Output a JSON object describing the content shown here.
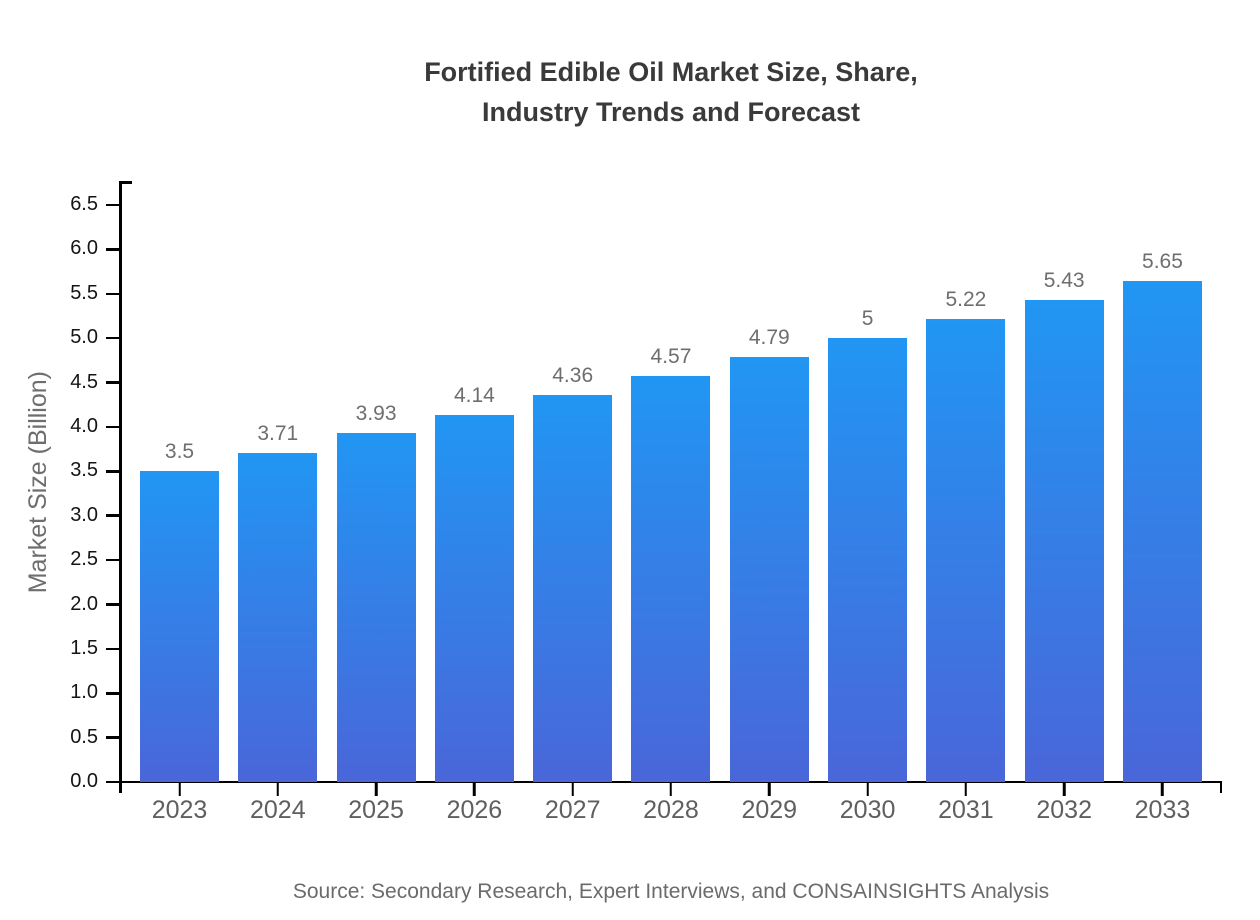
{
  "title": {
    "line1": "Fortified Edible Oil Market Size, Share,",
    "line2": "Industry Trends and Forecast"
  },
  "source": "Source: Secondary Research, Expert Interviews, and CONSAINSIGHTS Analysis",
  "chart_data": {
    "type": "bar",
    "title": "Fortified Edible Oil Market Size, Share, Industry Trends and Forecast",
    "categories": [
      "2023",
      "2024",
      "2025",
      "2026",
      "2027",
      "2028",
      "2029",
      "2030",
      "2031",
      "2032",
      "2033"
    ],
    "values": [
      3.5,
      3.71,
      3.93,
      4.14,
      4.36,
      4.57,
      4.79,
      5,
      5.22,
      5.43,
      5.65
    ],
    "value_labels": [
      "3.5",
      "3.71",
      "3.93",
      "4.14",
      "4.36",
      "4.57",
      "4.79",
      "5",
      "5.22",
      "5.43",
      "5.65"
    ],
    "xlabel": "",
    "ylabel": "Market Size (Billion)",
    "ylim": [
      0,
      6.76
    ],
    "yticks": [
      0.0,
      0.5,
      1.0,
      1.5,
      2.0,
      2.5,
      3.0,
      3.5,
      4.0,
      4.5,
      5.0,
      5.5,
      6.0,
      6.5
    ],
    "ytick_labels": [
      "0.0",
      "0.5",
      "1.0",
      "1.5",
      "2.0",
      "2.5",
      "3.0",
      "3.5",
      "4.0",
      "4.5",
      "5.0",
      "5.5",
      "6.0",
      "6.5"
    ],
    "grid": false,
    "legend": false,
    "colors": {
      "bar_gradient_top": "#2196f3",
      "bar_gradient_bottom": "#4a66d9",
      "axis": "#000000",
      "title_text": "#3a3a3a",
      "value_label_text": "#6e6e6e",
      "x_tick_label_text": "#5f5f5f",
      "y_tick_label_text": "#141414",
      "axis_title_text": "#6e6e6e",
      "source_text": "#6b6b6b"
    }
  }
}
